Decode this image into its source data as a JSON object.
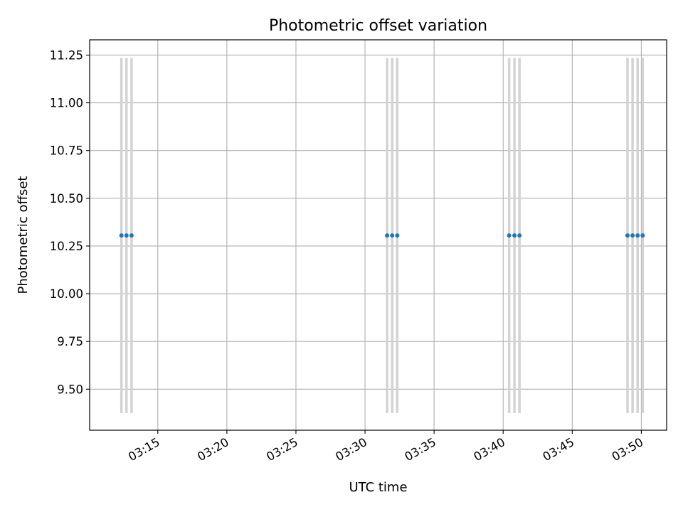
{
  "chart_data": {
    "type": "scatter",
    "title": "Photometric offset variation",
    "xlabel": "UTC time",
    "ylabel": "Photometric offset",
    "xlim": [
      "03:10:04",
      "03:51:50"
    ],
    "ylim": [
      9.285,
      11.33
    ],
    "x_ticks": [
      "03:15",
      "03:20",
      "03:25",
      "03:30",
      "03:35",
      "03:40",
      "03:45",
      "03:50"
    ],
    "y_ticks": [
      "9.50",
      "9.75",
      "10.00",
      "10.25",
      "10.50",
      "10.75",
      "11.00",
      "11.25"
    ],
    "grid": true,
    "marker_color": "#1f77b4",
    "errorbar_color": "#d3d3d3",
    "series": [
      {
        "x": [
          "03:12:22",
          "03:12:44",
          "03:13:06",
          "03:31:36",
          "03:31:58",
          "03:32:20",
          "03:40:26",
          "03:40:49",
          "03:41:11",
          "03:49:00",
          "03:49:22",
          "03:49:44",
          "03:50:06"
        ],
        "y": [
          10.305,
          10.305,
          10.305,
          10.305,
          10.305,
          10.305,
          10.305,
          10.305,
          10.305,
          10.305,
          10.305,
          10.305,
          10.305
        ],
        "yerr_low": [
          9.375,
          9.375,
          9.375,
          9.375,
          9.375,
          9.375,
          9.375,
          9.375,
          9.375,
          9.375,
          9.375,
          9.375,
          9.375
        ],
        "yerr_high": [
          11.235,
          11.235,
          11.235,
          11.235,
          11.235,
          11.235,
          11.235,
          11.235,
          11.235,
          11.235,
          11.235,
          11.235,
          11.235
        ]
      }
    ]
  }
}
